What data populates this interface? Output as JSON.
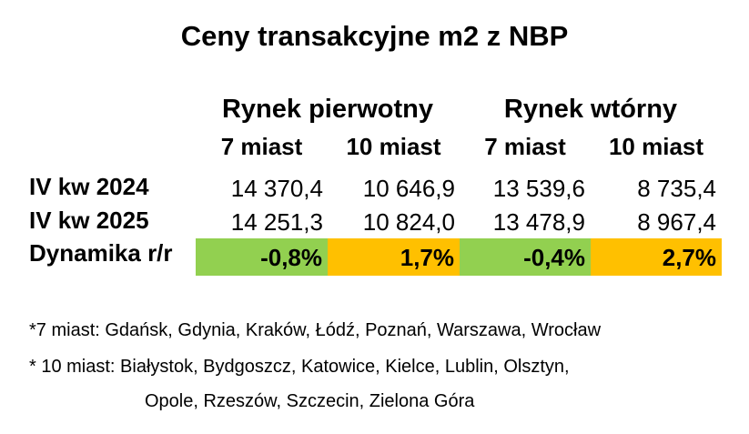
{
  "title": "Ceny transakcyjne m2 z NBP",
  "groups": [
    {
      "label": "Rynek pierwotny"
    },
    {
      "label": "Rynek wtórny"
    }
  ],
  "columns": [
    "7 miast",
    "10 miast",
    "7 miast",
    "10 miast"
  ],
  "rows": [
    {
      "label": "IV kw 2024",
      "values": [
        "14 370,4",
        "10 646,9",
        "13 539,6",
        "8 735,4"
      ]
    },
    {
      "label": "IV kw 2025",
      "values": [
        "14 251,3",
        "10 824,0",
        "13 478,9",
        "8 967,4"
      ]
    }
  ],
  "dynamics": {
    "label": "Dynamika r/r",
    "values": [
      "-0,8%",
      "1,7%",
      "-0,4%",
      "2,7%"
    ],
    "colors": [
      "#92d050",
      "#ffc000",
      "#92d050",
      "#ffc000"
    ]
  },
  "notes": {
    "line1": "*7 miast: Gdańsk, Gdynia, Kraków, Łódź, Poznań, Warszawa, Wrocław",
    "line2": "* 10 miast: Białystok, Bydgoszcz, Katowice, Kielce, Lublin, Olsztyn,",
    "line3": "Opole, Rzeszów, Szczecin, Zielona Góra"
  }
}
